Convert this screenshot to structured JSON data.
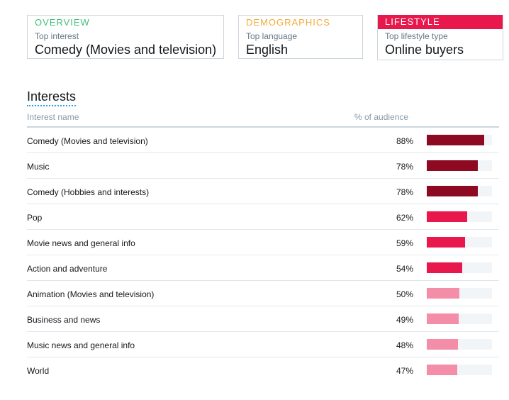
{
  "overview": {
    "header": "OVERVIEW",
    "sub": "Top interest",
    "value": "Comedy (Movies and television)"
  },
  "demographics": {
    "header": "DEMOGRAPHICS",
    "sub": "Top language",
    "value": "English"
  },
  "lifestyle": {
    "header": "LIFESTYLE",
    "sub": "Top lifestyle type",
    "value": "Online buyers"
  },
  "section_title": "Interests",
  "columns": {
    "name": "Interest name",
    "pct": "% of audience"
  },
  "colors": {
    "high": "#8e0a23",
    "mid": "#e8184d",
    "low": "#f48ea8"
  },
  "rows": [
    {
      "name": "Comedy (Movies and television)",
      "pct_label": "88%",
      "value": 88,
      "level": "high"
    },
    {
      "name": "Music",
      "pct_label": "78%",
      "value": 78,
      "level": "high"
    },
    {
      "name": "Comedy (Hobbies and interests)",
      "pct_label": "78%",
      "value": 78,
      "level": "high"
    },
    {
      "name": "Pop",
      "pct_label": "62%",
      "value": 62,
      "level": "mid"
    },
    {
      "name": "Movie news and general info",
      "pct_label": "59%",
      "value": 59,
      "level": "mid"
    },
    {
      "name": "Action and adventure",
      "pct_label": "54%",
      "value": 54,
      "level": "mid"
    },
    {
      "name": "Animation (Movies and television)",
      "pct_label": "50%",
      "value": 50,
      "level": "low"
    },
    {
      "name": "Business and news",
      "pct_label": "49%",
      "value": 49,
      "level": "low"
    },
    {
      "name": "Music news and general info",
      "pct_label": "48%",
      "value": 48,
      "level": "low"
    },
    {
      "name": "World",
      "pct_label": "47%",
      "value": 47,
      "level": "low"
    }
  ]
}
